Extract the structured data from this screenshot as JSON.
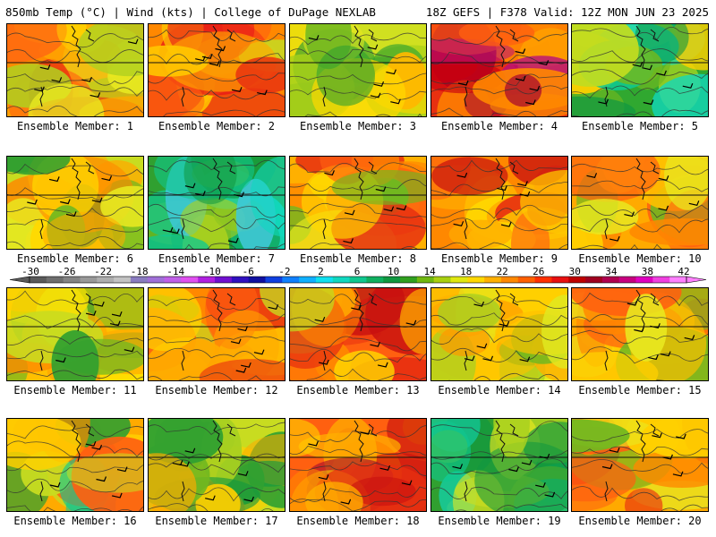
{
  "header": {
    "left": "850mb Temp (°C) | Wind (kts) | College of DuPage NEXLAB",
    "right": "18Z GEFS | F378 Valid: 12Z MON JUN 23 2025"
  },
  "colorbar": {
    "labels": [
      "-30",
      "-26",
      "-22",
      "-18",
      "-14",
      "-10",
      "-6",
      "-2",
      "2",
      "6",
      "10",
      "14",
      "18",
      "22",
      "26",
      "30",
      "34",
      "38",
      "42"
    ],
    "colors": [
      "#5a5a5a",
      "#6e6e6e",
      "#848484",
      "#999999",
      "#aeaeae",
      "#c3c3c3",
      "#8a7cc0",
      "#a070d8",
      "#c060e8",
      "#e050f0",
      "#b020e0",
      "#7010d0",
      "#3010c0",
      "#1010a0",
      "#1040e0",
      "#1080ff",
      "#10b0ff",
      "#10e0f0",
      "#10d8c0",
      "#10c890",
      "#10b060",
      "#109840",
      "#30a020",
      "#70b810",
      "#a8d010",
      "#e0e810",
      "#ffd800",
      "#ffb000",
      "#ff8800",
      "#ff6000",
      "#ff3000",
      "#e81010",
      "#c00000",
      "#a00020",
      "#b00050",
      "#c80080",
      "#e000c0",
      "#f040e0",
      "#ff80ff"
    ]
  },
  "members": [
    {
      "caption": "Ensemble Member: 1",
      "palette": [
        "#ff8a00",
        "#ffaa00",
        "#ffd000",
        "#e8e820",
        "#b0d020",
        "#ff6a10",
        "#e83010"
      ]
    },
    {
      "caption": "Ensemble Member: 2",
      "palette": [
        "#ff8800",
        "#ff6010",
        "#ffaa00",
        "#e83010",
        "#ffc800",
        "#c8d820",
        "#e81818"
      ]
    },
    {
      "caption": "Ensemble Member: 3",
      "palette": [
        "#d0e020",
        "#a8d018",
        "#ffd800",
        "#70b820",
        "#30a030",
        "#ffb800",
        "#e8e820"
      ]
    },
    {
      "caption": "Ensemble Member: 4",
      "palette": [
        "#e83010",
        "#c80010",
        "#ff6010",
        "#ff8800",
        "#a00030",
        "#ffaa00",
        "#b8107a"
      ]
    },
    {
      "caption": "Ensemble Member: 5",
      "palette": [
        "#30a830",
        "#10c890",
        "#70b820",
        "#c0dc20",
        "#10d8c0",
        "#109840",
        "#ffd000"
      ]
    },
    {
      "caption": "Ensemble Member: 6",
      "palette": [
        "#c8dc20",
        "#ffd800",
        "#70b820",
        "#ffaa00",
        "#30a030",
        "#ff8800",
        "#e8e820"
      ]
    },
    {
      "caption": "Ensemble Member: 7",
      "palette": [
        "#30a030",
        "#70b820",
        "#10c890",
        "#10d8c0",
        "#109840",
        "#a8d020",
        "#40c8d8"
      ]
    },
    {
      "caption": "Ensemble Member: 8",
      "palette": [
        "#ffb000",
        "#ff8800",
        "#ffd800",
        "#ff6010",
        "#70b820",
        "#e8e820",
        "#e83010"
      ]
    },
    {
      "caption": "Ensemble Member: 9",
      "palette": [
        "#ff8800",
        "#ff6010",
        "#ffaa00",
        "#e83010",
        "#ffc800",
        "#c81010",
        "#ffd800"
      ]
    },
    {
      "caption": "Ensemble Member: 10",
      "palette": [
        "#ffaa00",
        "#ff8800",
        "#ffd000",
        "#ff6010",
        "#e8e820",
        "#70b820",
        "#ffc000"
      ]
    },
    {
      "caption": "Ensemble Member: 11",
      "palette": [
        "#ffc000",
        "#ffaa00",
        "#c8dc20",
        "#70b820",
        "#30a030",
        "#ff8800",
        "#ffe000"
      ]
    },
    {
      "caption": "Ensemble Member: 12",
      "palette": [
        "#ff8800",
        "#ff6010",
        "#ffaa00",
        "#ffd000",
        "#e83010",
        "#c8dc20",
        "#70b820"
      ]
    },
    {
      "caption": "Ensemble Member: 13",
      "palette": [
        "#ff6010",
        "#e83010",
        "#ff8800",
        "#ffd800",
        "#c0dc20",
        "#c81010",
        "#ffaa00"
      ]
    },
    {
      "caption": "Ensemble Member: 14",
      "palette": [
        "#ffd000",
        "#ffb000",
        "#ff9800",
        "#e0e820",
        "#a8d020",
        "#70b820",
        "#ffc000"
      ]
    },
    {
      "caption": "Ensemble Member: 15",
      "palette": [
        "#ffaa00",
        "#ff8800",
        "#ffd000",
        "#ff6010",
        "#e8e820",
        "#70b820",
        "#ffc000"
      ]
    },
    {
      "caption": "Ensemble Member: 16",
      "palette": [
        "#ffaa00",
        "#ff8800",
        "#ffd000",
        "#ff6010",
        "#c8dc20",
        "#30a030",
        "#10c890"
      ]
    },
    {
      "caption": "Ensemble Member: 17",
      "palette": [
        "#c8dc20",
        "#ffd000",
        "#70b820",
        "#30a030",
        "#ffaa00",
        "#a8d020",
        "#109840"
      ]
    },
    {
      "caption": "Ensemble Member: 18",
      "palette": [
        "#ff6010",
        "#e83010",
        "#ff8800",
        "#c81010",
        "#ffb000",
        "#a00030",
        "#ffd000"
      ]
    },
    {
      "caption": "Ensemble Member: 19",
      "palette": [
        "#30a030",
        "#109840",
        "#70b820",
        "#10c890",
        "#a8d020",
        "#e8e820",
        "#10d8c0"
      ]
    },
    {
      "caption": "Ensemble Member: 20",
      "palette": [
        "#ffaa00",
        "#ff8800",
        "#ff6010",
        "#e83010",
        "#ffd000",
        "#e8e820",
        "#70b820"
      ]
    }
  ]
}
